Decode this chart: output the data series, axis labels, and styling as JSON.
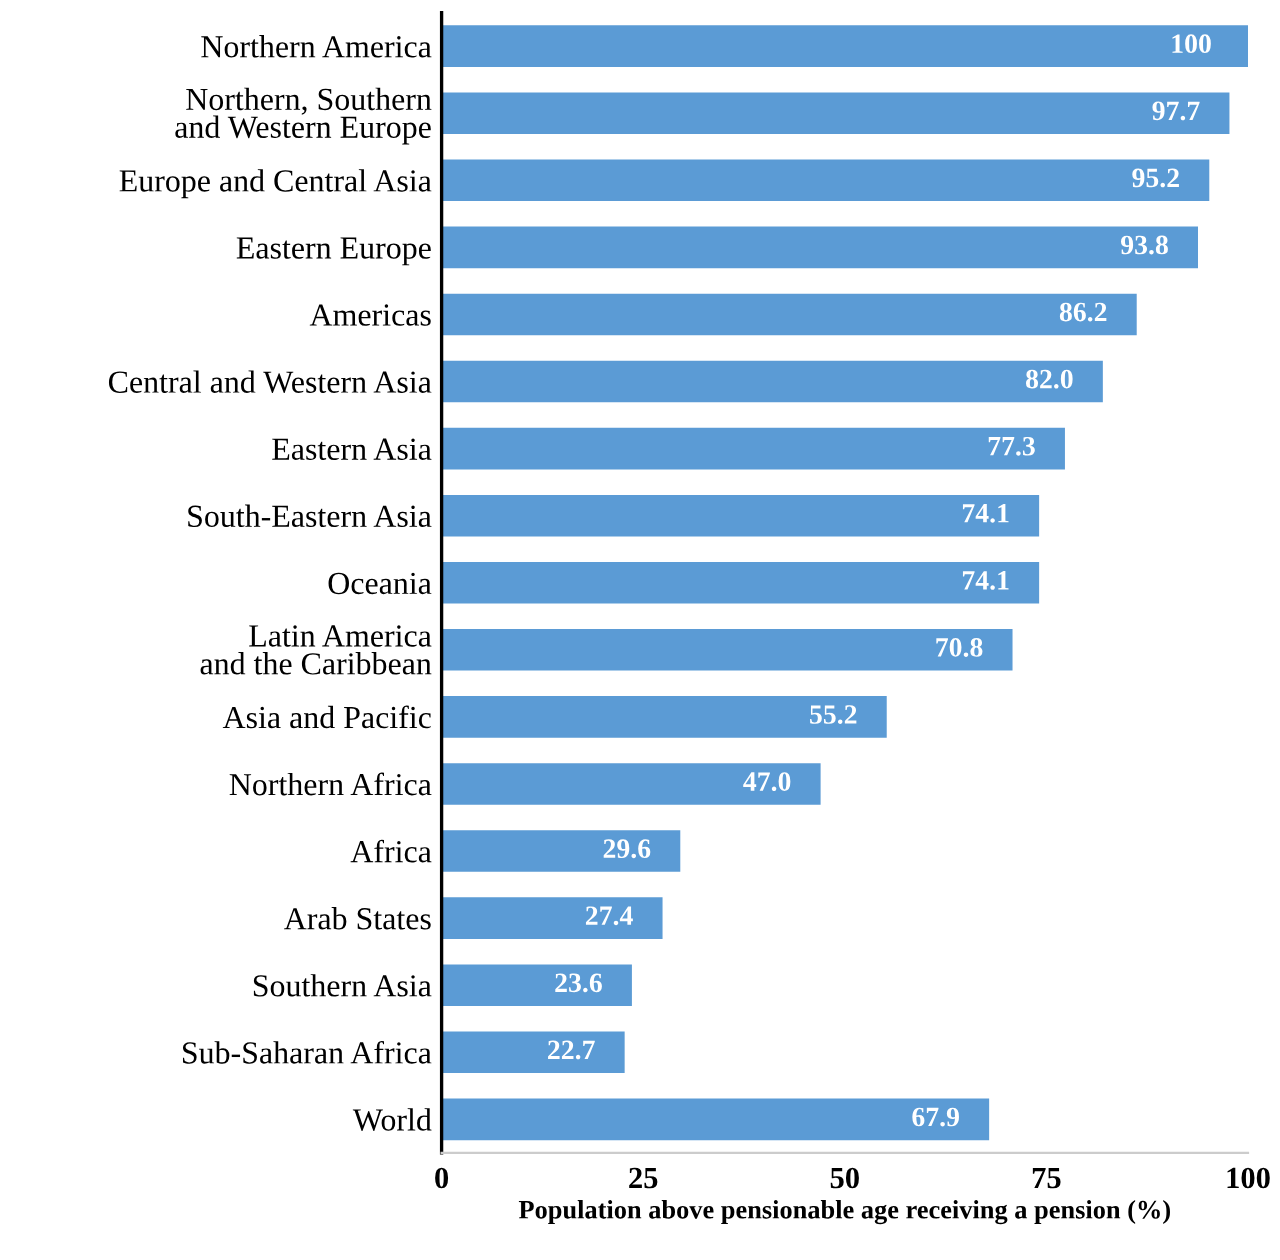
{
  "chart_data": {
    "type": "bar",
    "orientation": "horizontal",
    "xlabel": "Population above pensionable age receiving a pension (%)",
    "categories": [
      "Northern America",
      "Northern, Southern\nand Western Europe",
      "Europe and Central Asia",
      "Eastern Europe",
      "Americas",
      "Central and Western Asia",
      "Eastern Asia",
      "South-Eastern Asia",
      "Oceania",
      "Latin America\nand the Caribbean",
      "Asia and Pacific",
      "Northern Africa",
      "Africa",
      "Arab States",
      "Southern Asia",
      "Sub-Saharan Africa",
      "World"
    ],
    "values": [
      100,
      97.7,
      95.2,
      93.8,
      86.2,
      82.0,
      77.3,
      74.1,
      74.1,
      70.8,
      55.2,
      47.0,
      29.6,
      27.4,
      23.6,
      22.7,
      67.9
    ],
    "value_labels": [
      "100",
      "97.7",
      "95.2",
      "93.8",
      "86.2",
      "82.0",
      "77.3",
      "74.1",
      "74.1",
      "70.8",
      "55.2",
      "47.0",
      "29.6",
      "27.4",
      "23.6",
      "22.7",
      "67.9"
    ],
    "color": "#5b9bd5",
    "xlim": [
      0,
      100
    ],
    "xticks": [
      0,
      25,
      50,
      75,
      100
    ],
    "grid": false,
    "legend": false
  }
}
